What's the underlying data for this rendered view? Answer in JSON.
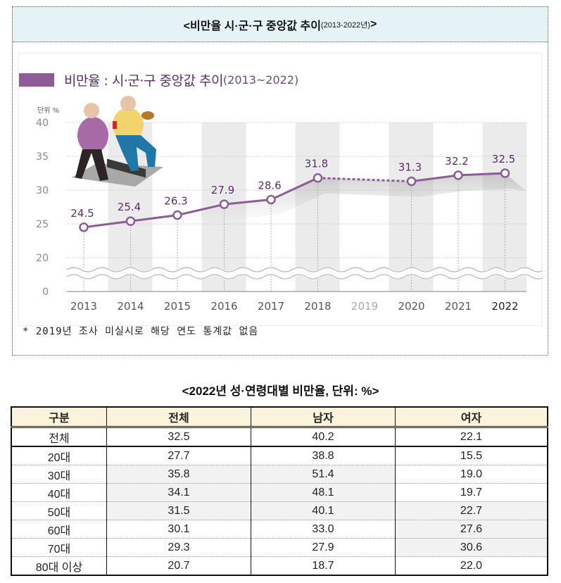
{
  "header": {
    "title_main": "<비만율 시·군·구 중앙값 추이",
    "title_sub": "(2013-2022년)",
    "title_end": ">"
  },
  "chart_heading": {
    "main": "비만율 : 시·군·구 중앙값 추이",
    "sub": "(2013~2022)"
  },
  "chart_data": {
    "type": "line",
    "title": "비만율 : 시·군·구 중앙값 추이(2013~2022)",
    "unit_label": "단위 %",
    "xlabel": "",
    "ylabel": "단위 %",
    "categories": [
      "2013",
      "2014",
      "2015",
      "2016",
      "2017",
      "2018",
      "2019",
      "2020",
      "2021",
      "2022"
    ],
    "values": [
      24.5,
      25.4,
      26.3,
      27.9,
      28.6,
      31.8,
      null,
      31.3,
      32.2,
      32.5
    ],
    "value_labels": [
      "24.5",
      "25.4",
      "26.3",
      "27.9",
      "28.6",
      "31.8",
      "",
      "31.3",
      "32.2",
      "32.5"
    ],
    "y_ticks": [
      "40",
      "35",
      "30",
      "25",
      "20",
      "0"
    ],
    "ylim": [
      0,
      40
    ],
    "axis_break": "between 0 and 20",
    "missing_year_note": "2019 dashed connection (no survey)",
    "grid": true,
    "line_color": "#8d5c97",
    "shaded_columns": [
      "2014",
      "2016",
      "2018",
      "2020",
      "2022"
    ]
  },
  "footnote": "* 2019년 조사 미실시로 해당 연도 통계값 없음",
  "table": {
    "title": "<2022년 성·연령대별 비만율, 단위: %>",
    "headers": [
      "구분",
      "전체",
      "남자",
      "여자"
    ],
    "rows": [
      {
        "label": "전체",
        "total": "32.5",
        "male": "40.2",
        "female": "22.1"
      },
      {
        "label": "20대",
        "total": "27.7",
        "male": "38.8",
        "female": "15.5"
      },
      {
        "label": "30대",
        "total": "35.8",
        "male": "51.4",
        "female": "19.0"
      },
      {
        "label": "40대",
        "total": "34.1",
        "male": "48.1",
        "female": "19.7"
      },
      {
        "label": "50대",
        "total": "31.5",
        "male": "40.1",
        "female": "22.7"
      },
      {
        "label": "60대",
        "total": "30.1",
        "male": "33.0",
        "female": "27.6"
      },
      {
        "label": "70대",
        "total": "29.3",
        "male": "27.9",
        "female": "30.6"
      },
      {
        "label": "80대 이상",
        "total": "20.7",
        "male": "18.7",
        "female": "22.0"
      }
    ]
  }
}
